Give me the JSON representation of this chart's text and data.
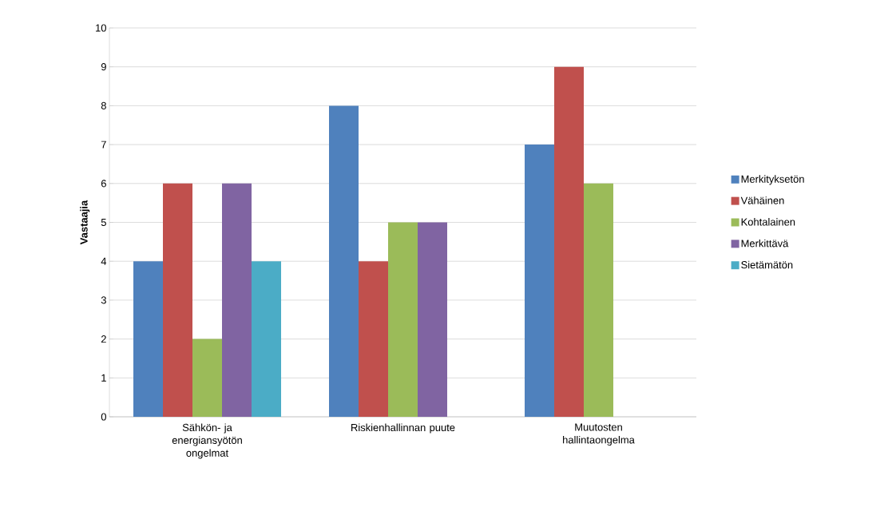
{
  "chart_data": {
    "type": "bar",
    "ylabel": "Vastaajia",
    "categories": [
      "Sähkön- ja energiansyötön ongelmat",
      "Riskienhallinnan puute",
      "Muutosten hallintaongelma"
    ],
    "series": [
      {
        "name": "Merkityksetön",
        "color": "#4f81bd",
        "values": [
          4,
          8,
          7
        ]
      },
      {
        "name": "Vähäinen",
        "color": "#c0504d",
        "values": [
          6,
          4,
          9
        ]
      },
      {
        "name": "Kohtalainen",
        "color": "#9bbb59",
        "values": [
          2,
          5,
          6
        ]
      },
      {
        "name": "Merkittävä",
        "color": "#8064a2",
        "values": [
          6,
          5,
          0
        ]
      },
      {
        "name": "Sietämätön",
        "color": "#4bacc6",
        "values": [
          4,
          0,
          0
        ]
      }
    ],
    "ylim": [
      0,
      10
    ],
    "yticks": [
      0,
      1,
      2,
      3,
      4,
      5,
      6,
      7,
      8,
      9,
      10
    ],
    "grid": "y",
    "legend": "right"
  }
}
